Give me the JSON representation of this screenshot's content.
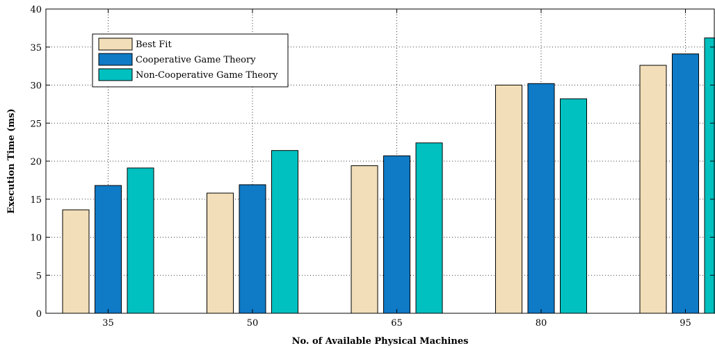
{
  "chart_data": {
    "type": "bar",
    "title": "",
    "xlabel": "No. of Available Physical Machines",
    "ylabel": "Execution Time (ms)",
    "categories": [
      "35",
      "50",
      "65",
      "80",
      "95"
    ],
    "ylim": [
      0,
      40
    ],
    "yticks": [
      0,
      5,
      10,
      15,
      20,
      25,
      30,
      35,
      40
    ],
    "grid": true,
    "legend_position": "top-left",
    "series": [
      {
        "name": "Best Fit",
        "color": "#f2deb8",
        "values": [
          13.6,
          15.8,
          19.4,
          30.0,
          32.6
        ]
      },
      {
        "name": "Cooperative Game Theory",
        "color": "#0f7ac6",
        "values": [
          16.8,
          16.9,
          20.7,
          30.2,
          34.1
        ]
      },
      {
        "name": "Non-Cooperative Game Theory",
        "color": "#00c0c0",
        "values": [
          19.1,
          21.4,
          22.4,
          28.2,
          36.2
        ]
      }
    ]
  }
}
